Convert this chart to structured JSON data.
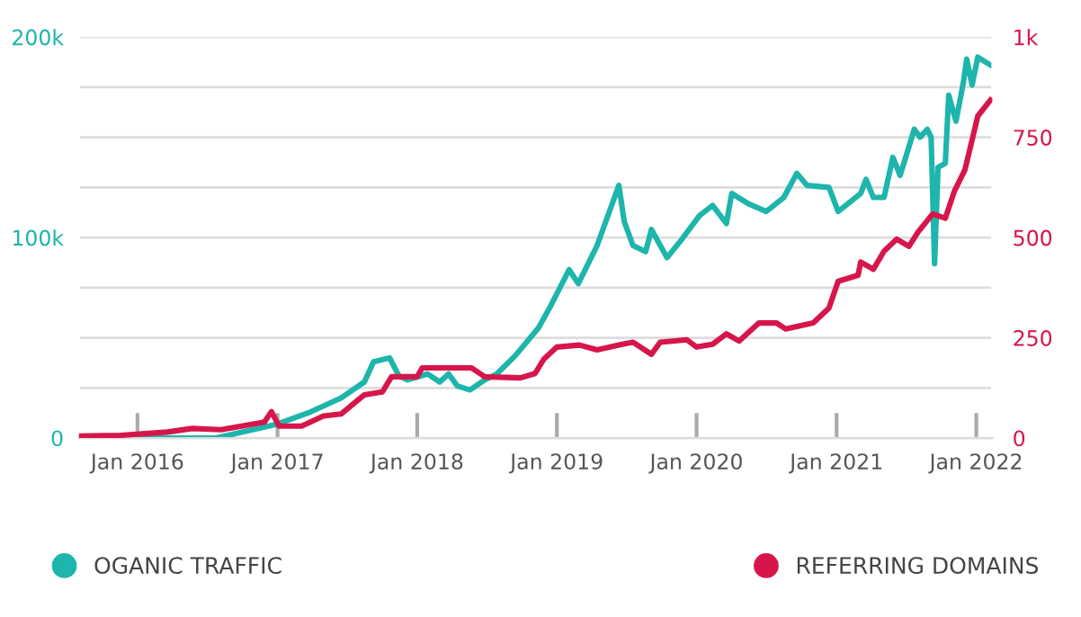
{
  "chart_data": {
    "type": "line",
    "xlim": [
      "2015-08-01",
      "2022-02-12"
    ],
    "xticks": [
      {
        "value": "2016-01-01",
        "label": "Jan 2016"
      },
      {
        "value": "2017-01-01",
        "label": "Jan 2017"
      },
      {
        "value": "2018-01-01",
        "label": "Jan 2018"
      },
      {
        "value": "2019-01-01",
        "label": "Jan 2019"
      },
      {
        "value": "2020-01-01",
        "label": "Jan 2020"
      },
      {
        "value": "2021-01-01",
        "label": "Jan 2021"
      },
      {
        "value": "2022-01-01",
        "label": "Jan 2022"
      }
    ],
    "ylim": [
      0,
      200000
    ],
    "yticks": [
      0,
      {
        "value": 25000,
        "label": null
      },
      {
        "value": 50000,
        "label": null
      },
      {
        "value": 75000,
        "label": null
      },
      {
        "value": 100000,
        "label": "100k"
      },
      {
        "value": 125000,
        "label": null
      },
      {
        "value": 150000,
        "label": null
      },
      {
        "value": 175000,
        "label": null
      },
      {
        "value": 200000,
        "label": "200k"
      }
    ],
    "y2lim": [
      0,
      1000
    ],
    "y2ticks": [
      0,
      250,
      500,
      750,
      {
        "value": 1000,
        "label": "1k"
      }
    ],
    "grid": "y",
    "legend": "bottom",
    "marker": "none",
    "line_style": "solid",
    "series": [
      {
        "name": "OGANIC TRAFFIC",
        "color": "#1db5ac",
        "x": [
          "2015-08-03",
          "2016-04-21",
          "2016-07-23",
          "2017-01-01",
          "2017-03-28",
          "2017-06-16",
          "2017-08-16",
          "2017-09-09",
          "2017-10-21",
          "2017-11-14",
          "2017-12-07",
          "2018-01-28",
          "2018-03-01",
          "2018-03-24",
          "2018-04-16",
          "2018-05-19",
          "2018-06-26",
          "2018-07-28",
          "2018-09-14",
          "2018-11-14",
          "2018-12-16",
          "2019-02-02",
          "2019-02-26",
          "2019-04-16",
          "2019-06-12",
          "2019-06-26",
          "2019-07-19",
          "2019-08-21",
          "2019-09-05",
          "2019-10-16",
          "2019-11-23",
          "2020-01-09",
          "2020-02-12",
          "2020-03-19",
          "2020-04-02",
          "2020-05-14",
          "2020-07-01",
          "2020-08-16",
          "2020-09-19",
          "2020-10-16",
          "2020-12-12",
          "2021-01-05",
          "2021-03-05",
          "2021-03-19",
          "2021-04-07",
          "2021-05-05",
          "2021-05-28",
          "2021-06-16",
          "2021-07-23",
          "2021-08-07",
          "2021-08-26",
          "2021-09-05",
          "2021-09-14",
          "2021-09-23",
          "2021-10-12",
          "2021-10-21",
          "2021-11-09",
          "2021-11-28",
          "2021-12-07",
          "2021-12-21",
          "2022-01-05",
          "2022-02-07"
        ],
        "values": [
          0,
          0,
          0,
          7000,
          13000,
          20000,
          28000,
          38000,
          40000,
          31000,
          29000,
          32000,
          28000,
          32000,
          26000,
          24000,
          29000,
          32000,
          41000,
          55000,
          66000,
          84000,
          77000,
          96000,
          126000,
          108000,
          96000,
          93000,
          104000,
          90000,
          99000,
          111000,
          116000,
          107000,
          122000,
          117000,
          113000,
          120000,
          132000,
          126000,
          125000,
          113000,
          122000,
          129000,
          120000,
          120000,
          140000,
          131000,
          154000,
          150000,
          154000,
          150000,
          87000,
          135000,
          137000,
          171000,
          158000,
          177000,
          189000,
          176000,
          190000,
          186000
        ]
      },
      {
        "name": "REFERRING DOMAINS",
        "color": "#d6164b",
        "axis": "y2",
        "x": [
          "2015-08-03",
          "2015-11-19",
          "2016-03-19",
          "2016-05-23",
          "2016-08-07",
          "2016-11-28",
          "2016-12-16",
          "2017-01-05",
          "2017-03-05",
          "2017-05-01",
          "2017-06-16",
          "2017-08-16",
          "2017-10-02",
          "2017-10-26",
          "2018-01-01",
          "2018-01-14",
          "2018-05-23",
          "2018-06-26",
          "2018-09-28",
          "2018-11-05",
          "2018-11-28",
          "2019-01-01",
          "2019-03-01",
          "2019-04-16",
          "2019-06-21",
          "2019-07-19",
          "2019-09-05",
          "2019-09-28",
          "2019-12-07",
          "2020-01-01",
          "2020-02-12",
          "2020-03-19",
          "2020-04-21",
          "2020-06-12",
          "2020-07-28",
          "2020-08-21",
          "2020-11-01",
          "2020-12-12",
          "2021-01-05",
          "2021-02-26",
          "2021-03-05",
          "2021-04-07",
          "2021-05-05",
          "2021-06-07",
          "2021-07-09",
          "2021-08-02",
          "2021-09-09",
          "2021-10-12",
          "2021-11-05",
          "2021-12-02",
          "2021-12-21",
          "2022-01-05",
          "2022-02-07"
        ],
        "values": [
          5,
          7,
          15,
          24,
          21,
          40,
          66,
          30,
          30,
          55,
          60,
          108,
          115,
          153,
          153,
          175,
          175,
          153,
          150,
          161,
          197,
          227,
          232,
          220,
          234,
          239,
          209,
          239,
          245,
          227,
          234,
          260,
          242,
          287,
          287,
          272,
          287,
          324,
          391,
          406,
          439,
          421,
          466,
          496,
          478,
          514,
          559,
          548,
          616,
          668,
          743,
          803,
          843
        ]
      }
    ]
  }
}
